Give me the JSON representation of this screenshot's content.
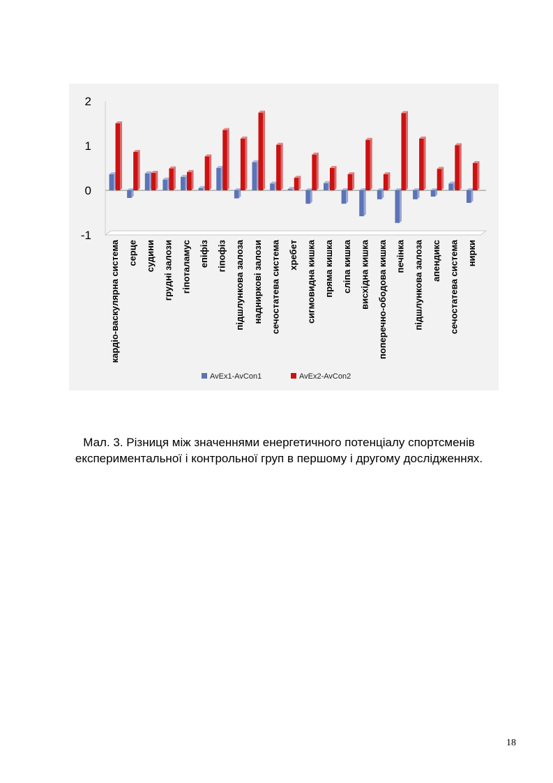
{
  "colors": {
    "series1": "#5b73b8",
    "series2": "#cc1111",
    "panel_background": "#f2f2f2"
  },
  "chart_data": {
    "type": "bar",
    "title": "",
    "xlabel": "",
    "ylabel": "",
    "ylim": [
      -1,
      2
    ],
    "y_ticks": [
      -1,
      0,
      1,
      2
    ],
    "grid": false,
    "legend_position": "bottom",
    "categories": [
      "кардіо-васкулярна система",
      "серце",
      "судини",
      "грудні залози",
      "гіпоталамус",
      "епіфіз",
      "гіпофіз",
      "підшлункова залоза",
      "надниркові залози",
      "сечостатева система",
      "хребет",
      "сигмовидна кишка",
      "пряма кишка",
      "сліпа кишка",
      "висхідна кишка",
      "поперечно-ободова кишка",
      "печінка",
      "підшлункова залоза",
      "апендикс",
      "сечостатева система",
      "нирки"
    ],
    "series": [
      {
        "name": "AvEx1-AvCon1",
        "color": "#5b73b8",
        "values": [
          0.36,
          -0.17,
          0.38,
          0.24,
          0.3,
          0.05,
          0.5,
          -0.18,
          0.63,
          0.15,
          0.03,
          -0.3,
          0.16,
          -0.3,
          -0.58,
          -0.2,
          -0.73,
          -0.2,
          -0.14,
          0.15,
          -0.28
        ]
      },
      {
        "name": "AvEx2-AvCon2",
        "color": "#cc1111",
        "values": [
          1.5,
          0.86,
          0.39,
          0.49,
          0.41,
          0.76,
          1.35,
          1.16,
          1.74,
          1.02,
          0.28,
          0.8,
          0.5,
          0.36,
          1.13,
          0.36,
          1.73,
          1.16,
          0.48,
          1.01,
          0.61
        ]
      }
    ]
  },
  "caption": {
    "line1": "Мал. 3. Різниця між значеннями енергетичного потенціалу спортсменів",
    "line2": "експериментальної і контрольної груп в першому і другому дослідженнях."
  },
  "page_number": "18"
}
